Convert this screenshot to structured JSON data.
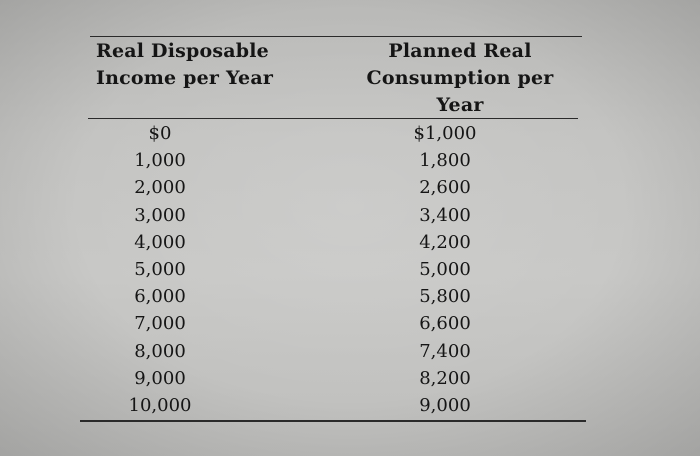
{
  "table": {
    "headers": {
      "income": [
        "Real Disposable",
        "Income per Year"
      ],
      "consumption": [
        "Planned Real",
        "Consumption per Year"
      ]
    },
    "rows": [
      {
        "income": "$0",
        "consumption": "$1,000"
      },
      {
        "income": "1,000",
        "consumption": "1,800"
      },
      {
        "income": "2,000",
        "consumption": "2,600"
      },
      {
        "income": "3,000",
        "consumption": "3,400"
      },
      {
        "income": "4,000",
        "consumption": "4,200"
      },
      {
        "income": "5,000",
        "consumption": "5,000"
      },
      {
        "income": "6,000",
        "consumption": "5,800"
      },
      {
        "income": "7,000",
        "consumption": "6,600"
      },
      {
        "income": "8,000",
        "consumption": "7,400"
      },
      {
        "income": "9,000",
        "consumption": "8,200"
      },
      {
        "income": "10,000",
        "consumption": "9,000"
      }
    ]
  }
}
